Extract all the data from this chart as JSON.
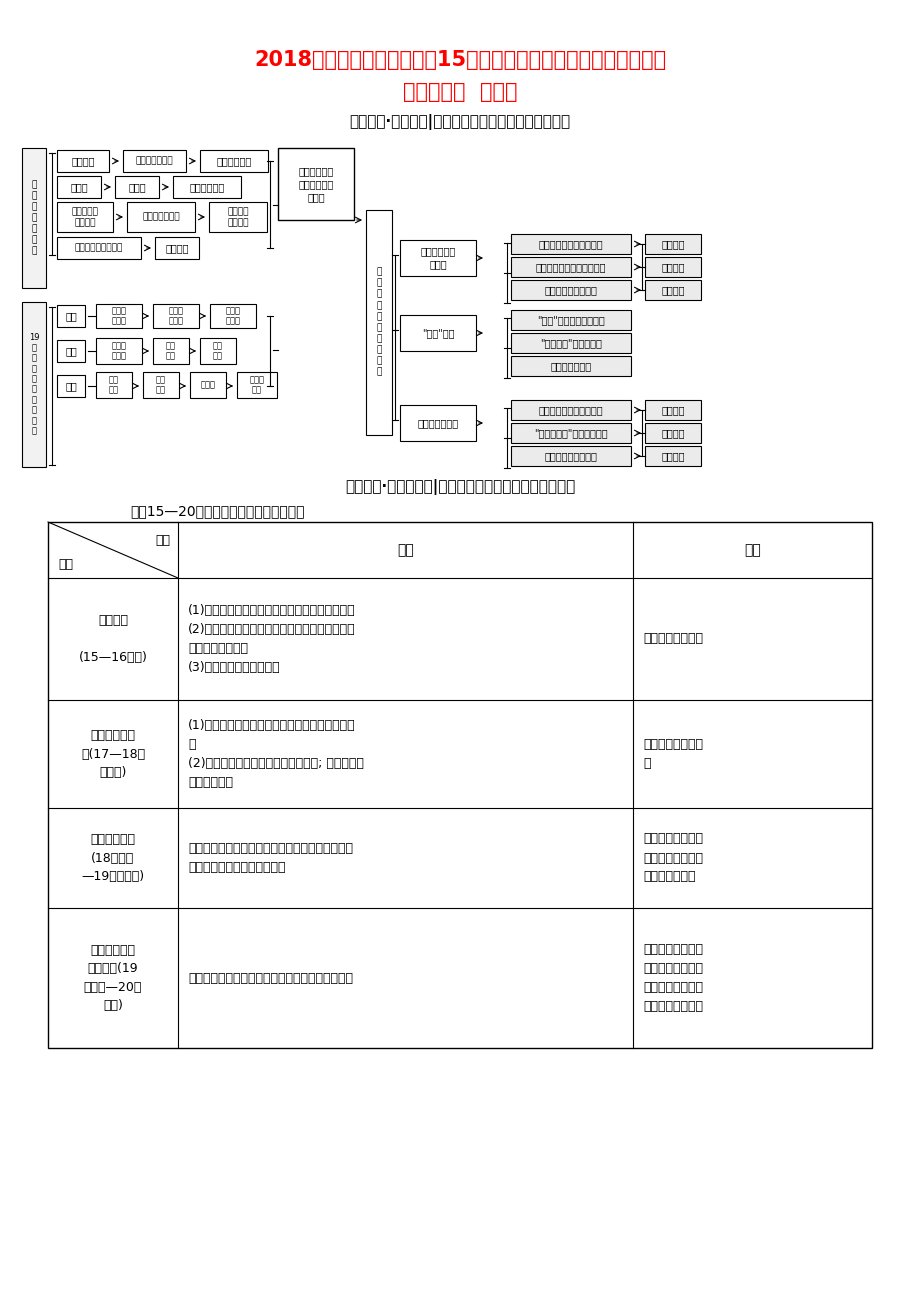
{
  "title_line1": "2018高考历史一轮复习专题15近、现代中外科学技术与文学艺术专",
  "title_line2": "题高效整合  人民版",
  "title_color": "#FF0000",
  "subtitle1": "知识网络·脉络清晰|框图纵览，用联系的观点牢记历史",
  "subtitle2": "知识整合·无障碍通达|专题归纳，用辩证的观点看待历史",
  "section_heading": "一、15—20世纪自然科学发展的四个阶段",
  "bg_color": "#FFFFFF",
  "table_rows": [
    [
      "产生阶段\n\n(15—16世纪)",
      "(1)资本主义工商业的产生和发展奠定了物质基础\n(2)人文主义思潮的影响使人们对自然界的认识产\n生了革命性的变化\n(3)中世纪生产经验的积累",
      "天文学领域的革命"
    ],
    [
      "形成和发展阶\n段(17—18世\n纪中期)",
      "(1)新航路的开辟促进了西欧资本主义工商业的发\n展\n(2)手工工场的发展促进了技术的进步; 早期资产阶\n级革命的成功",
      "牛顿力学体系的创\n立"
    ],
    [
      "迅速发展阶段\n(18世纪末\n—19世纪中期)",
      "随着该时期西方主要国家工业革命的进行，经济的\n发展对科学提出了更高的要求",
      "电磁学的新成就、\n细胞学说和达尔文\n的生物进化论等"
    ],
    [
      "重大突破和系\n统化阶段(19\n世纪末—20世\n纪初)",
      "第二次工业革命的进行和资本主义经济的迅速发展",
      "电的发明与应用，\n特别是爱因斯坦的\n相对论更是物理学\n思想的一次重大革"
    ]
  ]
}
